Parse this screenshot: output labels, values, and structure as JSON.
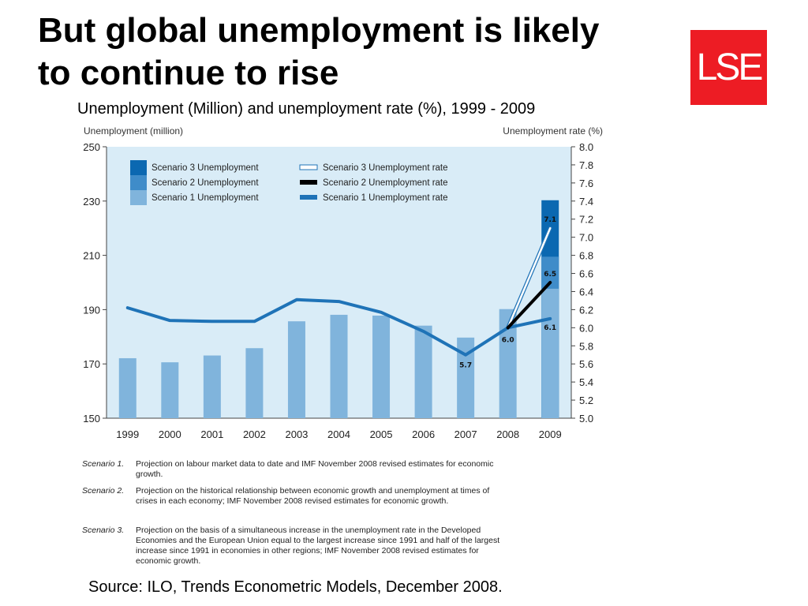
{
  "slide": {
    "title": "But global unemployment is likely to continue to rise",
    "logo_text": "LSE",
    "subtitle": "Unemployment (Million) and unemployment rate (%), 1999 - 2009",
    "source": "Source: ILO, Trends Econometric Models, December 2008.",
    "notes": [
      {
        "label": "Scenario 1.",
        "text": "Projection on labour market data to date and IMF November 2008 revised estimates for economic growth."
      },
      {
        "label": "Scenario 2.",
        "text": "Projection on the historical relationship between economic growth and unemployment at times of crises in each economy; IMF November 2008 revised estimates for economic growth."
      },
      {
        "label": "Scenario 3.",
        "text": "Projection on the basis of a simultaneous increase in the unemployment rate in the Developed Economies and the European Union equal to the largest increase since 1991 and half of the largest increase since 1991 in economies in other regions; IMF November 2008 revised estimates for economic growth."
      }
    ]
  },
  "chart_data": {
    "type": "bar",
    "categories": [
      "1999",
      "2000",
      "2001",
      "2002",
      "2003",
      "2004",
      "2005",
      "2006",
      "2007",
      "2008",
      "2009"
    ],
    "ylabel": "Unemployment (million)",
    "ylabel_right": "Unemployment rate (%)",
    "ylim": [
      150,
      250
    ],
    "yticks": [
      150,
      170,
      190,
      210,
      230,
      250
    ],
    "ylim_right": [
      5.0,
      8.0
    ],
    "yticks_right": [
      "5.0",
      "5.2",
      "5.4",
      "5.6",
      "5.8",
      "6.0",
      "6.2",
      "6.4",
      "6.6",
      "6.8",
      "7.0",
      "7.2",
      "7.4",
      "7.6",
      "7.8",
      "8.0"
    ],
    "bar_series": [
      {
        "name": "Scenario 1 Unemployment",
        "color": "#80b4dc",
        "values": [
          172.1,
          170.6,
          173.1,
          175.8,
          185.7,
          188.1,
          187.8,
          184.1,
          179.7,
          190.2,
          197.7
        ]
      },
      {
        "name": "Scenario 2 Unemployment",
        "color": "#3f8cc9",
        "values": [
          null,
          null,
          null,
          null,
          null,
          null,
          null,
          null,
          null,
          null,
          209.5
        ]
      },
      {
        "name": "Scenario 3 Unemployment",
        "color": "#0b68b1",
        "values": [
          null,
          null,
          null,
          null,
          null,
          null,
          null,
          null,
          null,
          null,
          230.3
        ]
      }
    ],
    "line_series": [
      {
        "name": "Scenario 3 Unemployment rate",
        "color": "#ffffff",
        "x": [
          "2008",
          "2009"
        ],
        "values": [
          6.0,
          7.1
        ]
      },
      {
        "name": "Scenario 2 Unemployment rate",
        "color": "#000000",
        "x": [
          "2008",
          "2009"
        ],
        "values": [
          6.0,
          6.5
        ]
      },
      {
        "name": "Scenario 1 Unemployment rate",
        "color": "#1f73b7",
        "x": [
          "1999",
          "2000",
          "2001",
          "2002",
          "2003",
          "2004",
          "2005",
          "2006",
          "2007",
          "2008",
          "2009"
        ],
        "values": [
          6.22,
          6.08,
          6.07,
          6.07,
          6.31,
          6.29,
          6.17,
          5.96,
          5.7,
          6.0,
          6.1
        ]
      }
    ],
    "data_labels": [
      {
        "x": "2007",
        "value": 5.7,
        "text": "5.7"
      },
      {
        "x": "2008",
        "value": 6.0,
        "text": "6.0"
      },
      {
        "x": "2009",
        "value": 6.1,
        "text": "6.1"
      },
      {
        "x": "2009",
        "value": 6.5,
        "text": "6.5"
      },
      {
        "x": "2009",
        "value": 7.1,
        "text": "7.1"
      }
    ],
    "legend_position": "top-left",
    "background": "#d9ecf7"
  }
}
